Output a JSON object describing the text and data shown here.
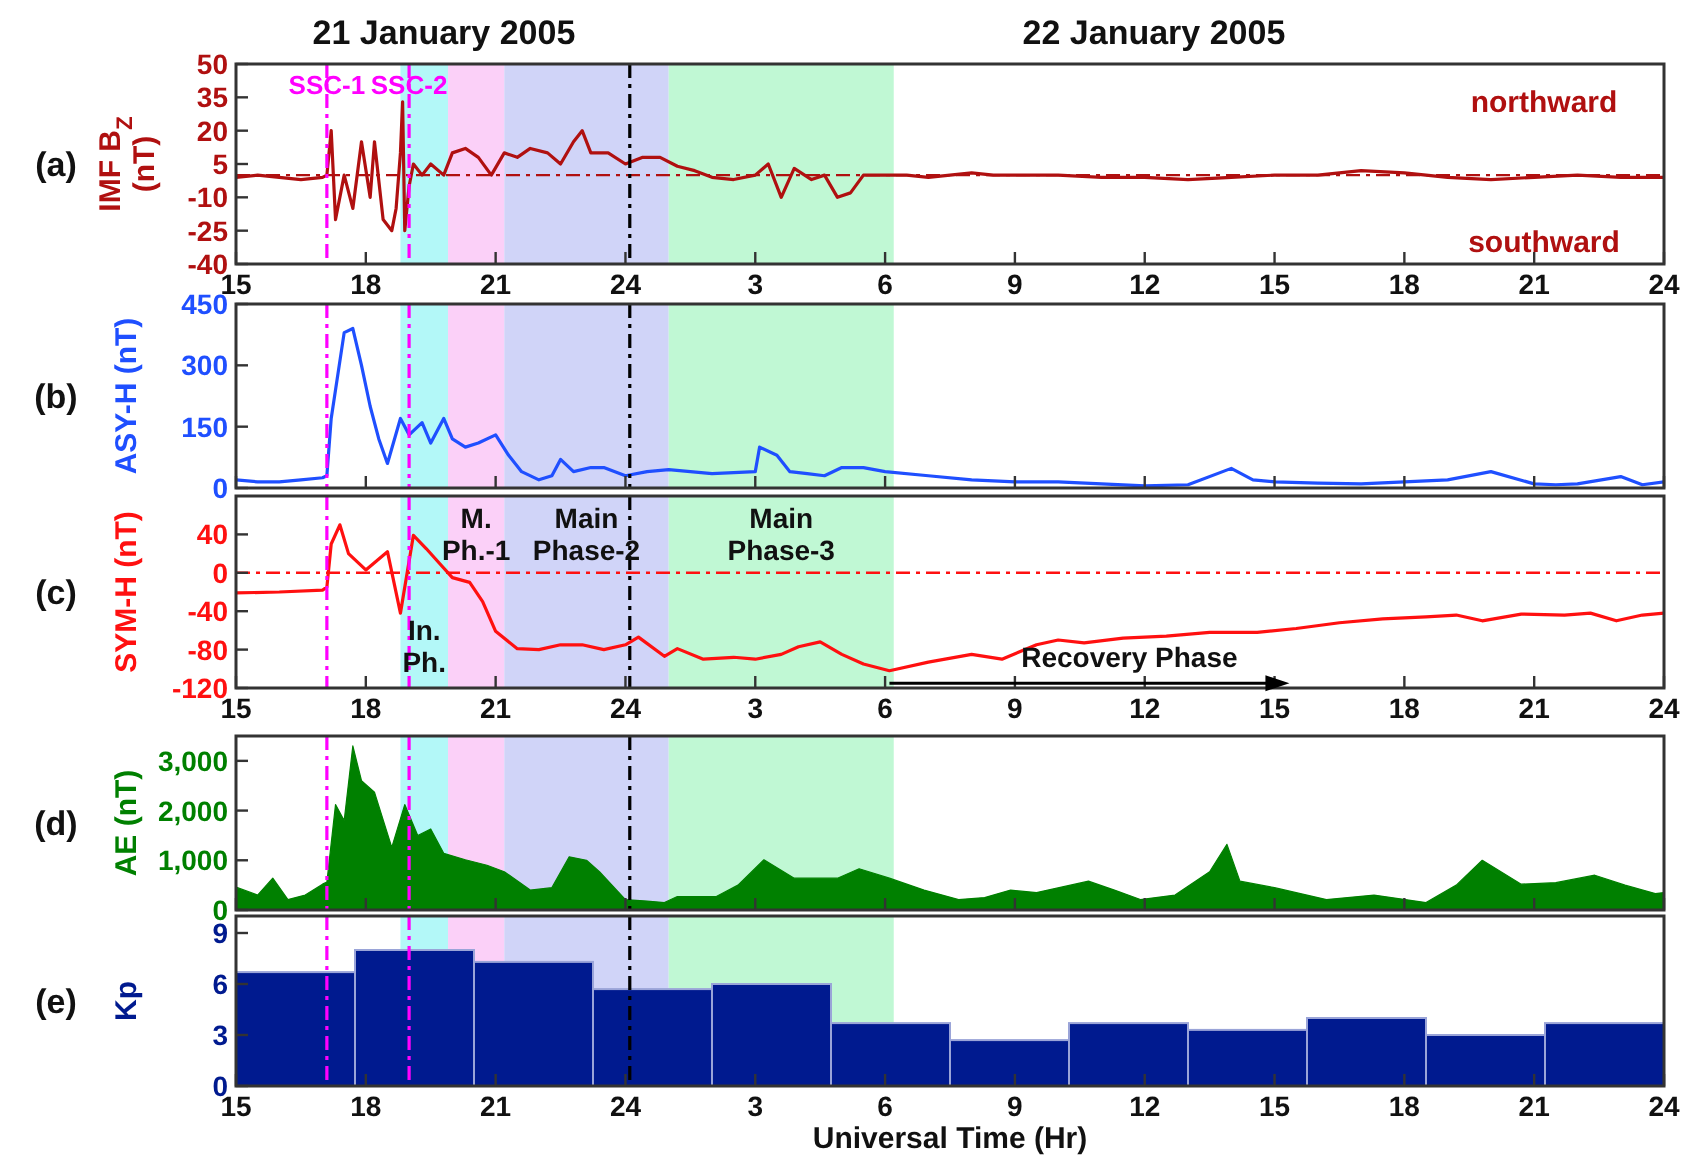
{
  "chart_data": [
    {
      "type": "line",
      "ylabel": "IMF B$_{Z}$ (nT)",
      "color": "#b01010",
      "x": [
        "2005-01-21T15:00",
        "2005-01-21T15:30",
        "2005-01-21T16:00",
        "2005-01-21T16:30",
        "2005-01-21T17:00",
        "2005-01-21T17:06",
        "2005-01-21T17:12",
        "2005-01-21T17:18",
        "2005-01-21T17:30",
        "2005-01-21T17:42",
        "2005-01-21T17:54",
        "2005-01-21T18:06",
        "2005-01-21T18:12",
        "2005-01-21T18:24",
        "2005-01-21T18:36",
        "2005-01-21T18:42",
        "2005-01-21T18:48",
        "2005-01-21T18:51",
        "2005-01-21T18:54",
        "2005-01-21T19:00",
        "2005-01-21T19:06",
        "2005-01-21T19:18",
        "2005-01-21T19:30",
        "2005-01-21T19:48",
        "2005-01-21T20:00",
        "2005-01-21T20:18",
        "2005-01-21T20:36",
        "2005-01-21T20:54",
        "2005-01-21T21:12",
        "2005-01-21T21:30",
        "2005-01-21T21:48",
        "2005-01-21T22:12",
        "2005-01-21T22:30",
        "2005-01-21T22:48",
        "2005-01-21T23:00",
        "2005-01-21T23:12",
        "2005-01-21T23:36",
        "2005-01-22T00:00",
        "2005-01-22T00:24",
        "2005-01-22T00:48",
        "2005-01-22T01:12",
        "2005-01-22T01:36",
        "2005-01-22T02:00",
        "2005-01-22T02:30",
        "2005-01-22T03:00",
        "2005-01-22T03:18",
        "2005-01-22T03:36",
        "2005-01-22T03:54",
        "2005-01-22T04:18",
        "2005-01-22T04:36",
        "2005-01-22T04:54",
        "2005-01-22T05:12",
        "2005-01-22T05:30",
        "2005-01-22T06:00",
        "2005-01-22T06:30",
        "2005-01-22T07:00",
        "2005-01-22T08:00",
        "2005-01-22T08:30",
        "2005-01-22T09:00",
        "2005-01-22T10:00",
        "2005-01-22T11:00",
        "2005-01-22T12:00",
        "2005-01-22T13:00",
        "2005-01-22T14:00",
        "2005-01-22T15:00",
        "2005-01-22T16:00",
        "2005-01-22T17:00",
        "2005-01-22T18:00",
        "2005-01-22T19:00",
        "2005-01-22T20:00",
        "2005-01-22T21:00",
        "2005-01-22T22:00",
        "2005-01-22T23:00",
        "2005-01-23T00:00"
      ],
      "values": [
        -1,
        0,
        -1,
        -2,
        -1,
        0,
        20,
        -20,
        0,
        -15,
        15,
        -10,
        15,
        -20,
        -25,
        -15,
        10,
        33,
        -25,
        -5,
        5,
        0,
        5,
        0,
        10,
        12,
        8,
        0,
        10,
        8,
        12,
        10,
        5,
        15,
        20,
        10,
        10,
        5,
        8,
        8,
        4,
        2,
        -1,
        -2,
        0,
        5,
        -10,
        3,
        -2,
        0,
        -10,
        -8,
        0,
        0,
        0,
        -1,
        1,
        0,
        0,
        0,
        -1,
        -1,
        -2,
        -1,
        0,
        0,
        2,
        1,
        -1,
        -2,
        -1,
        0,
        -1,
        -1
      ],
      "xlim": [
        "2005-01-21T15:00",
        "2005-01-23T00:00"
      ],
      "xticks": [
        {
          "value": "2005-01-21T15:00",
          "label": "15"
        },
        {
          "value": "2005-01-21T18:00",
          "label": "18"
        },
        {
          "value": "2005-01-21T21:00",
          "label": "21"
        },
        {
          "value": "2005-01-22T00:00",
          "label": "24"
        },
        {
          "value": "2005-01-22T03:00",
          "label": "3"
        },
        {
          "value": "2005-01-22T06:00",
          "label": "6"
        },
        {
          "value": "2005-01-22T09:00",
          "label": "9"
        },
        {
          "value": "2005-01-22T12:00",
          "label": "12"
        },
        {
          "value": "2005-01-22T15:00",
          "label": "15"
        },
        {
          "value": "2005-01-22T18:00",
          "label": "18"
        },
        {
          "value": "2005-01-22T21:00",
          "label": "21"
        },
        {
          "value": "2005-01-23T00:00",
          "label": "24"
        }
      ],
      "ylim": [
        -40,
        50
      ],
      "yticks": [
        -40,
        -25,
        -10,
        5,
        20,
        35,
        50
      ],
      "annotations": [
        "(a)",
        "21 January 2005",
        "22 January 2005",
        "northward",
        "southward"
      ],
      "bands": [
        {
          "axis": "x",
          "from": "2005-01-21T18:48",
          "to": "2005-01-21T19:54",
          "color": "#b3f8f8"
        },
        {
          "axis": "x",
          "from": "2005-01-21T19:54",
          "to": "2005-01-21T21:12",
          "color": "#fbd0f8"
        },
        {
          "axis": "x",
          "from": "2005-01-21T21:12",
          "to": "2005-01-22T01:00",
          "color": "#d0d4f8"
        },
        {
          "axis": "x",
          "from": "2005-01-22T01:00",
          "to": "2005-01-22T06:12",
          "color": "#c0f8d4"
        }
      ],
      "ref_lines": [
        {
          "axis": "y",
          "value": 0,
          "color": "#b01010",
          "line_style": "dashed"
        },
        {
          "axis": "x",
          "value": "2005-01-21T17:06",
          "label": "SSC-1",
          "color": "#ff00ff",
          "line_style": "dashed"
        },
        {
          "axis": "x",
          "value": "2005-01-21T19:00",
          "label": "SSC-2",
          "color": "#ff00ff",
          "line_style": "dashed"
        },
        {
          "axis": "x",
          "value": "2005-01-22T00:06",
          "color": "#000000",
          "line_style": "dashed"
        }
      ]
    },
    {
      "type": "line",
      "ylabel": "ASY-H (nT)",
      "color": "#1f4fff",
      "tick_labels": "y",
      "x": [
        "2005-01-21T15:00",
        "2005-01-21T15:30",
        "2005-01-21T16:00",
        "2005-01-21T16:30",
        "2005-01-21T17:00",
        "2005-01-21T17:06",
        "2005-01-21T17:12",
        "2005-01-21T17:30",
        "2005-01-21T17:42",
        "2005-01-21T17:54",
        "2005-01-21T18:06",
        "2005-01-21T18:18",
        "2005-01-21T18:30",
        "2005-01-21T18:48",
        "2005-01-21T19:00",
        "2005-01-21T19:18",
        "2005-01-21T19:30",
        "2005-01-21T19:48",
        "2005-01-21T20:00",
        "2005-01-21T20:18",
        "2005-01-21T20:36",
        "2005-01-21T21:00",
        "2005-01-21T21:18",
        "2005-01-21T21:36",
        "2005-01-21T22:00",
        "2005-01-21T22:18",
        "2005-01-21T22:30",
        "2005-01-21T22:48",
        "2005-01-21T23:12",
        "2005-01-21T23:30",
        "2005-01-22T00:00",
        "2005-01-22T00:30",
        "2005-01-22T01:00",
        "2005-01-22T01:30",
        "2005-01-22T02:00",
        "2005-01-22T03:00",
        "2005-01-22T03:06",
        "2005-01-22T03:30",
        "2005-01-22T03:48",
        "2005-01-22T04:12",
        "2005-01-22T04:36",
        "2005-01-22T05:00",
        "2005-01-22T05:30",
        "2005-01-22T06:00",
        "2005-01-22T07:00",
        "2005-01-22T08:00",
        "2005-01-22T09:00",
        "2005-01-22T10:00",
        "2005-01-22T11:00",
        "2005-01-22T12:00",
        "2005-01-22T13:00",
        "2005-01-22T14:00",
        "2005-01-22T14:30",
        "2005-01-22T15:00",
        "2005-01-22T16:00",
        "2005-01-22T17:00",
        "2005-01-22T18:00",
        "2005-01-22T19:00",
        "2005-01-22T20:00",
        "2005-01-22T21:00",
        "2005-01-22T21:30",
        "2005-01-22T22:00",
        "2005-01-22T23:00",
        "2005-01-22T23:30",
        "2005-01-23T00:00"
      ],
      "values": [
        20,
        15,
        15,
        20,
        25,
        30,
        170,
        380,
        390,
        300,
        200,
        120,
        60,
        170,
        130,
        160,
        110,
        170,
        120,
        100,
        110,
        130,
        80,
        40,
        20,
        30,
        70,
        40,
        50,
        50,
        30,
        40,
        45,
        40,
        35,
        40,
        100,
        80,
        40,
        35,
        30,
        50,
        50,
        40,
        30,
        20,
        15,
        15,
        10,
        5,
        8,
        48,
        20,
        15,
        12,
        10,
        15,
        20,
        40,
        10,
        8,
        10,
        28,
        8,
        15
      ],
      "xlim": [
        "2005-01-21T15:00",
        "2005-01-23T00:00"
      ],
      "xticks": [
        {
          "value": "2005-01-21T15:00",
          "label": null
        },
        {
          "value": "2005-01-21T18:00",
          "label": null
        },
        {
          "value": "2005-01-21T21:00",
          "label": null
        },
        {
          "value": "2005-01-22T00:00",
          "label": null
        },
        {
          "value": "2005-01-22T03:00",
          "label": null
        },
        {
          "value": "2005-01-22T06:00",
          "label": null
        },
        {
          "value": "2005-01-22T09:00",
          "label": null
        },
        {
          "value": "2005-01-22T12:00",
          "label": null
        },
        {
          "value": "2005-01-22T15:00",
          "label": null
        },
        {
          "value": "2005-01-22T18:00",
          "label": null
        },
        {
          "value": "2005-01-22T21:00",
          "label": null
        },
        {
          "value": "2005-01-23T00:00",
          "label": null
        }
      ],
      "ylim": [
        0,
        450
      ],
      "yticks": [
        0,
        150,
        300,
        450
      ],
      "annotations": [
        "(b)"
      ],
      "bands": [
        {
          "axis": "x",
          "from": "2005-01-21T18:48",
          "to": "2005-01-21T19:54",
          "color": "#b3f8f8"
        },
        {
          "axis": "x",
          "from": "2005-01-21T19:54",
          "to": "2005-01-21T21:12",
          "color": "#fbd0f8"
        },
        {
          "axis": "x",
          "from": "2005-01-21T21:12",
          "to": "2005-01-22T01:00",
          "color": "#d0d4f8"
        },
        {
          "axis": "x",
          "from": "2005-01-22T01:00",
          "to": "2005-01-22T06:12",
          "color": "#c0f8d4"
        }
      ],
      "ref_lines": [
        {
          "axis": "x",
          "value": "2005-01-21T17:06",
          "color": "#ff00ff",
          "line_style": "dashed"
        },
        {
          "axis": "x",
          "value": "2005-01-21T19:00",
          "color": "#ff00ff",
          "line_style": "dashed"
        },
        {
          "axis": "x",
          "value": "2005-01-22T00:06",
          "color": "#000000",
          "line_style": "dashed"
        }
      ]
    },
    {
      "type": "line",
      "ylabel": "SYM-H (nT)",
      "color": "#ff1010",
      "x": [
        "2005-01-21T15:00",
        "2005-01-21T16:00",
        "2005-01-21T17:00",
        "2005-01-21T17:06",
        "2005-01-21T17:12",
        "2005-01-21T17:24",
        "2005-01-21T17:36",
        "2005-01-21T18:00",
        "2005-01-21T18:30",
        "2005-01-21T18:48",
        "2005-01-21T19:06",
        "2005-01-21T19:24",
        "2005-01-21T19:42",
        "2005-01-21T20:00",
        "2005-01-21T20:24",
        "2005-01-21T20:42",
        "2005-01-21T21:00",
        "2005-01-21T21:30",
        "2005-01-21T22:00",
        "2005-01-21T22:30",
        "2005-01-21T23:00",
        "2005-01-21T23:30",
        "2005-01-22T00:00",
        "2005-01-22T00:18",
        "2005-01-22T00:54",
        "2005-01-22T01:12",
        "2005-01-22T01:48",
        "2005-01-22T02:30",
        "2005-01-22T03:00",
        "2005-01-22T03:36",
        "2005-01-22T04:00",
        "2005-01-22T04:30",
        "2005-01-22T05:00",
        "2005-01-22T05:30",
        "2005-01-22T06:06",
        "2005-01-22T07:00",
        "2005-01-22T08:00",
        "2005-01-22T08:42",
        "2005-01-22T09:30",
        "2005-01-22T10:00",
        "2005-01-22T10:36",
        "2005-01-22T11:30",
        "2005-01-22T12:30",
        "2005-01-22T13:30",
        "2005-01-22T14:36",
        "2005-01-22T15:30",
        "2005-01-22T16:30",
        "2005-01-22T17:30",
        "2005-01-22T18:30",
        "2005-01-22T19:12",
        "2005-01-22T19:48",
        "2005-01-22T20:42",
        "2005-01-22T21:42",
        "2005-01-22T22:18",
        "2005-01-22T22:54",
        "2005-01-22T23:30",
        "2005-01-23T00:00"
      ],
      "values": [
        -21,
        -20,
        -18,
        -15,
        30,
        50,
        20,
        3,
        22,
        -42,
        39,
        25,
        10,
        -5,
        -10,
        -30,
        -61,
        -79,
        -80,
        -75,
        -75,
        -80,
        -75,
        -67,
        -87,
        -79,
        -90,
        -88,
        -90,
        -85,
        -77,
        -72,
        -85,
        -95,
        -102,
        -93,
        -85,
        -90,
        -75,
        -70,
        -73,
        -68,
        -66,
        -62,
        -62,
        -58,
        -52,
        -48,
        -46,
        -44,
        -50,
        -43,
        -44,
        -42,
        -50,
        -44,
        -42
      ],
      "xlim": [
        "2005-01-21T15:00",
        "2005-01-23T00:00"
      ],
      "xticks": [
        {
          "value": "2005-01-21T15:00",
          "label": "15"
        },
        {
          "value": "2005-01-21T18:00",
          "label": "18"
        },
        {
          "value": "2005-01-21T21:00",
          "label": "21"
        },
        {
          "value": "2005-01-22T00:00",
          "label": "24"
        },
        {
          "value": "2005-01-22T03:00",
          "label": "3"
        },
        {
          "value": "2005-01-22T06:00",
          "label": "6"
        },
        {
          "value": "2005-01-22T09:00",
          "label": "9"
        },
        {
          "value": "2005-01-22T12:00",
          "label": "12"
        },
        {
          "value": "2005-01-22T15:00",
          "label": "15"
        },
        {
          "value": "2005-01-22T18:00",
          "label": "18"
        },
        {
          "value": "2005-01-22T21:00",
          "label": "21"
        },
        {
          "value": "2005-01-23T00:00",
          "label": "24"
        }
      ],
      "ylim": [
        -120,
        80
      ],
      "yticks": [
        -120,
        -80,
        -40,
        0,
        40
      ],
      "annotations": [
        "(c)",
        {
          "text": "Recovery Phase",
          "x": "2005-01-22T06:06",
          "y": -115
        }
      ],
      "bands": [
        {
          "axis": "x",
          "from": "2005-01-21T18:48",
          "to": "2005-01-21T19:54",
          "label": "In. Ph.",
          "color": "#b3f8f8"
        },
        {
          "axis": "x",
          "from": "2005-01-21T19:54",
          "to": "2005-01-21T21:12",
          "label": "M. Ph.-1",
          "color": "#fbd0f8"
        },
        {
          "axis": "x",
          "from": "2005-01-21T21:12",
          "to": "2005-01-22T01:00",
          "label": "Main Phase-2",
          "color": "#d0d4f8"
        },
        {
          "axis": "x",
          "from": "2005-01-22T01:00",
          "to": "2005-01-22T06:12",
          "label": "Main Phase-3",
          "color": "#c0f8d4"
        }
      ],
      "ref_lines": [
        {
          "axis": "y",
          "value": 0,
          "color": "#ff1010",
          "line_style": "dashed"
        },
        {
          "axis": "x",
          "value": "2005-01-21T17:06",
          "color": "#ff00ff",
          "line_style": "dashed"
        },
        {
          "axis": "x",
          "value": "2005-01-21T19:00",
          "color": "#ff00ff",
          "line_style": "dashed"
        },
        {
          "axis": "x",
          "value": "2005-01-22T00:06",
          "color": "#000000",
          "line_style": "dashed"
        }
      ]
    },
    {
      "type": "area",
      "ylabel": "AE (nT)",
      "color": "#008000",
      "tick_labels": "y",
      "x": [
        "2005-01-21T15:00",
        "2005-01-21T15:30",
        "2005-01-21T15:51",
        "2005-01-21T16:12",
        "2005-01-21T16:36",
        "2005-01-21T17:00",
        "2005-01-21T17:06",
        "2005-01-21T17:18",
        "2005-01-21T17:30",
        "2005-01-21T17:42",
        "2005-01-21T17:54",
        "2005-01-21T18:12",
        "2005-01-21T18:36",
        "2005-01-21T18:54",
        "2005-01-21T19:12",
        "2005-01-21T19:30",
        "2005-01-21T19:48",
        "2005-01-21T20:18",
        "2005-01-21T20:48",
        "2005-01-21T21:12",
        "2005-01-21T21:48",
        "2005-01-21T22:18",
        "2005-01-21T22:42",
        "2005-01-21T23:06",
        "2005-01-21T23:24",
        "2005-01-22T00:00",
        "2005-01-22T00:30",
        "2005-01-22T00:54",
        "2005-01-22T01:12",
        "2005-01-22T02:06",
        "2005-01-22T02:36",
        "2005-01-22T03:12",
        "2005-01-22T03:54",
        "2005-01-22T04:54",
        "2005-01-22T05:24",
        "2005-01-22T06:06",
        "2005-01-22T06:54",
        "2005-01-22T07:42",
        "2005-01-22T08:18",
        "2005-01-22T08:54",
        "2005-01-22T09:30",
        "2005-01-22T10:42",
        "2005-01-22T11:18",
        "2005-01-22T11:54",
        "2005-01-22T12:42",
        "2005-01-22T13:30",
        "2005-01-22T13:54",
        "2005-01-22T14:12",
        "2005-01-22T15:00",
        "2005-01-22T16:12",
        "2005-01-22T17:18",
        "2005-01-22T18:30",
        "2005-01-22T19:12",
        "2005-01-22T19:48",
        "2005-01-22T20:42",
        "2005-01-22T21:30",
        "2005-01-22T22:24",
        "2005-01-22T23:06",
        "2005-01-22T23:48",
        "2005-01-23T00:00"
      ],
      "values": [
        460,
        300,
        640,
        210,
        300,
        520,
        560,
        2120,
        1800,
        3300,
        2600,
        2370,
        1260,
        2120,
        1500,
        1630,
        1140,
        1010,
        900,
        770,
        400,
        450,
        1070,
        1000,
        770,
        210,
        180,
        150,
        270,
        270,
        500,
        1010,
        640,
        640,
        830,
        640,
        400,
        210,
        250,
        400,
        350,
        580,
        400,
        210,
        300,
        770,
        1320,
        580,
        450,
        210,
        300,
        150,
        500,
        1000,
        520,
        550,
        700,
        500,
        330,
        350
      ],
      "xlim": [
        "2005-01-21T15:00",
        "2005-01-23T00:00"
      ],
      "xticks": [
        {
          "value": "2005-01-21T15:00",
          "label": null
        },
        {
          "value": "2005-01-21T18:00",
          "label": null
        },
        {
          "value": "2005-01-21T21:00",
          "label": null
        },
        {
          "value": "2005-01-22T00:00",
          "label": null
        },
        {
          "value": "2005-01-22T03:00",
          "label": null
        },
        {
          "value": "2005-01-22T06:00",
          "label": null
        },
        {
          "value": "2005-01-22T09:00",
          "label": null
        },
        {
          "value": "2005-01-22T12:00",
          "label": null
        },
        {
          "value": "2005-01-22T15:00",
          "label": null
        },
        {
          "value": "2005-01-22T18:00",
          "label": null
        },
        {
          "value": "2005-01-22T21:00",
          "label": null
        },
        {
          "value": "2005-01-23T00:00",
          "label": null
        }
      ],
      "ylim": [
        0,
        3500
      ],
      "yticks": [
        0,
        {
          "value": 1000,
          "label": "1,000"
        },
        {
          "value": 2000,
          "label": "2,000"
        },
        {
          "value": 3000,
          "label": "3,000"
        }
      ],
      "annotations": [
        "(d)"
      ],
      "bands": [
        {
          "axis": "x",
          "from": "2005-01-21T18:48",
          "to": "2005-01-21T19:54",
          "color": "#b3f8f8"
        },
        {
          "axis": "x",
          "from": "2005-01-21T19:54",
          "to": "2005-01-21T21:12",
          "color": "#fbd0f8"
        },
        {
          "axis": "x",
          "from": "2005-01-21T21:12",
          "to": "2005-01-22T01:00",
          "color": "#d0d4f8"
        },
        {
          "axis": "x",
          "from": "2005-01-22T01:00",
          "to": "2005-01-22T06:12",
          "color": "#c0f8d4"
        }
      ],
      "ref_lines": [
        {
          "axis": "x",
          "value": "2005-01-21T17:06",
          "color": "#ff00ff",
          "line_style": "dashed"
        },
        {
          "axis": "x",
          "value": "2005-01-21T19:00",
          "color": "#ff00ff",
          "line_style": "dashed"
        },
        {
          "axis": "x",
          "value": "2005-01-22T00:06",
          "color": "#000000",
          "line_style": "dashed"
        }
      ]
    },
    {
      "type": "bar",
      "ylabel": "Kp",
      "xlabel": "Universal Time (Hr)",
      "color": "#001a8f",
      "x": [
        "2005-01-21T16:22:30",
        "2005-01-21T19:07:30",
        "2005-01-21T21:52:30",
        "2005-01-22T00:37:30",
        "2005-01-22T03:22:30",
        "2005-01-22T06:07:30",
        "2005-01-22T08:52:30",
        "2005-01-22T11:37:30",
        "2005-01-22T14:22:30",
        "2005-01-22T17:07:30",
        "2005-01-22T19:52:30",
        "2005-01-22T22:37:30"
      ],
      "values": [
        6.7,
        8,
        7.3,
        5.7,
        6,
        3.7,
        2.7,
        3.7,
        3.3,
        4,
        3,
        3.7
      ],
      "xlim": [
        "2005-01-21T15:00",
        "2005-01-23T00:00"
      ],
      "xticks": [
        {
          "value": "2005-01-21T15:00",
          "label": "15"
        },
        {
          "value": "2005-01-21T18:00",
          "label": "18"
        },
        {
          "value": "2005-01-21T21:00",
          "label": "21"
        },
        {
          "value": "2005-01-22T00:00",
          "label": "24"
        },
        {
          "value": "2005-01-22T03:00",
          "label": "3"
        },
        {
          "value": "2005-01-22T06:00",
          "label": "6"
        },
        {
          "value": "2005-01-22T09:00",
          "label": "9"
        },
        {
          "value": "2005-01-22T12:00",
          "label": "12"
        },
        {
          "value": "2005-01-22T15:00",
          "label": "15"
        },
        {
          "value": "2005-01-22T18:00",
          "label": "18"
        },
        {
          "value": "2005-01-22T21:00",
          "label": "21"
        },
        {
          "value": "2005-01-23T00:00",
          "label": "24"
        }
      ],
      "ylim": [
        0,
        10
      ],
      "yticks": [
        0,
        3,
        6,
        9
      ],
      "annotations": [
        "(e)"
      ],
      "bands": [
        {
          "axis": "x",
          "from": "2005-01-21T18:48",
          "to": "2005-01-21T19:54",
          "color": "#b3f8f8"
        },
        {
          "axis": "x",
          "from": "2005-01-21T19:54",
          "to": "2005-01-21T21:12",
          "color": "#fbd0f8"
        },
        {
          "axis": "x",
          "from": "2005-01-21T21:12",
          "to": "2005-01-22T01:00",
          "color": "#d0d4f8"
        },
        {
          "axis": "x",
          "from": "2005-01-22T01:00",
          "to": "2005-01-22T06:12",
          "color": "#c0f8d4"
        }
      ],
      "ref_lines": [
        {
          "axis": "x",
          "value": "2005-01-21T17:06",
          "color": "#ff00ff",
          "line_style": "dashed"
        },
        {
          "axis": "x",
          "value": "2005-01-21T19:00",
          "color": "#ff00ff",
          "line_style": "dashed"
        },
        {
          "axis": "x",
          "value": "2005-01-22T00:06",
          "color": "#000000",
          "line_style": "dashed"
        }
      ]
    }
  ]
}
